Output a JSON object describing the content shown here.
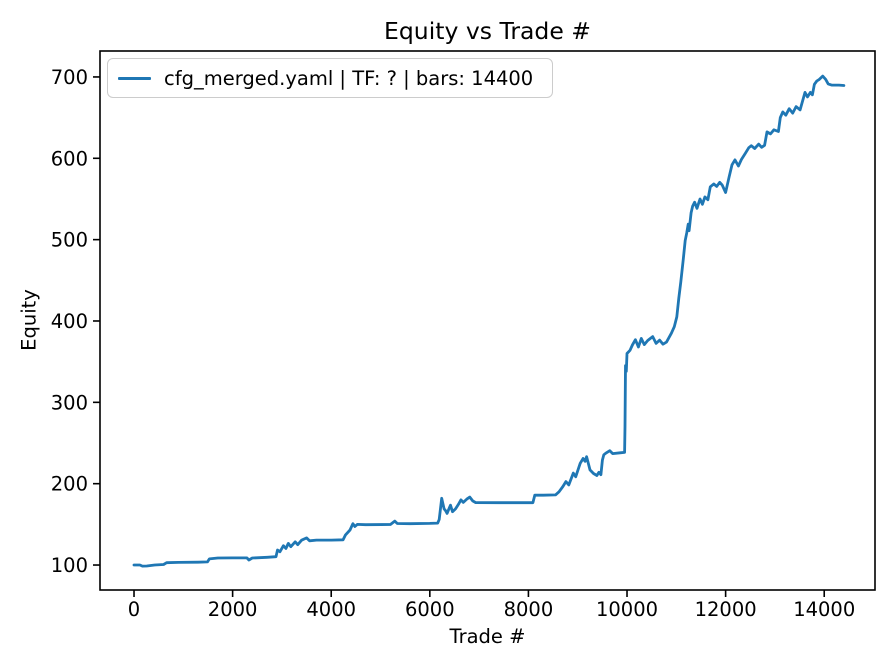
{
  "figure": {
    "background": "#ffffff"
  },
  "chart_data": {
    "type": "line",
    "title": "Equity vs Trade #",
    "xlabel": "Trade #",
    "ylabel": "Equity",
    "grid": false,
    "legend": {
      "position": "upper left",
      "entries": [
        {
          "label": "cfg_merged.yaml | TF: ? | bars: 14400",
          "color": "#1f77b4"
        }
      ]
    },
    "axis_color": "#000000",
    "x_ticks": [
      0,
      2000,
      4000,
      6000,
      8000,
      10000,
      12000,
      14000
    ],
    "y_ticks": [
      100,
      200,
      300,
      400,
      500,
      600,
      700
    ],
    "xlim": [
      -690,
      15030
    ],
    "ylim": [
      69.3,
      731.9
    ],
    "series": [
      {
        "name": "cfg_merged.yaml | TF: ? | bars: 14400",
        "color": "#1f77b4",
        "points": [
          [
            0,
            100
          ],
          [
            120,
            100
          ],
          [
            170,
            98.7
          ],
          [
            260,
            98.8
          ],
          [
            420,
            100
          ],
          [
            600,
            100.6
          ],
          [
            660,
            102.9
          ],
          [
            900,
            103.2
          ],
          [
            1300,
            103.5
          ],
          [
            1490,
            103.8
          ],
          [
            1530,
            107.5
          ],
          [
            1700,
            108.6
          ],
          [
            2000,
            108.8
          ],
          [
            2290,
            108.8
          ],
          [
            2330,
            106.2
          ],
          [
            2400,
            108.6
          ],
          [
            2700,
            109.5
          ],
          [
            2880,
            110.2
          ],
          [
            2910,
            118.5
          ],
          [
            2960,
            116.3
          ],
          [
            3030,
            123.7
          ],
          [
            3080,
            120.3
          ],
          [
            3130,
            126.6
          ],
          [
            3180,
            122.5
          ],
          [
            3270,
            128.6
          ],
          [
            3320,
            125
          ],
          [
            3400,
            130.5
          ],
          [
            3500,
            133.3
          ],
          [
            3560,
            129.8
          ],
          [
            3700,
            130.7
          ],
          [
            4000,
            130.7
          ],
          [
            4240,
            131
          ],
          [
            4290,
            137
          ],
          [
            4380,
            143
          ],
          [
            4440,
            150.8
          ],
          [
            4480,
            147.3
          ],
          [
            4530,
            150
          ],
          [
            4700,
            149.6
          ],
          [
            5200,
            149.8
          ],
          [
            5290,
            154
          ],
          [
            5340,
            151
          ],
          [
            5600,
            150.8
          ],
          [
            6000,
            151.2
          ],
          [
            6160,
            151.5
          ],
          [
            6190,
            156
          ],
          [
            6240,
            182
          ],
          [
            6290,
            169
          ],
          [
            6320,
            166.8
          ],
          [
            6350,
            163.5
          ],
          [
            6390,
            169.3
          ],
          [
            6420,
            173.5
          ],
          [
            6460,
            165.5
          ],
          [
            6520,
            169
          ],
          [
            6580,
            174.5
          ],
          [
            6630,
            180
          ],
          [
            6680,
            177
          ],
          [
            6750,
            181
          ],
          [
            6810,
            183.5
          ],
          [
            6870,
            178.8
          ],
          [
            6930,
            176.7
          ],
          [
            7400,
            176.6
          ],
          [
            8090,
            176.6
          ],
          [
            8130,
            186
          ],
          [
            8300,
            185.8
          ],
          [
            8550,
            186.2
          ],
          [
            8620,
            190
          ],
          [
            8700,
            196.5
          ],
          [
            8760,
            202.5
          ],
          [
            8820,
            198.5
          ],
          [
            8910,
            213
          ],
          [
            8960,
            208.5
          ],
          [
            9050,
            225
          ],
          [
            9110,
            231
          ],
          [
            9150,
            227.5
          ],
          [
            9180,
            233.2
          ],
          [
            9250,
            217
          ],
          [
            9320,
            212.5
          ],
          [
            9390,
            210
          ],
          [
            9430,
            214
          ],
          [
            9470,
            211
          ],
          [
            9500,
            229
          ],
          [
            9530,
            235.5
          ],
          [
            9570,
            237.5
          ],
          [
            9650,
            240.5
          ],
          [
            9710,
            237
          ],
          [
            9860,
            238
          ],
          [
            9950,
            238.5
          ],
          [
            9960,
            270
          ],
          [
            9970,
            345
          ],
          [
            9985,
            338
          ],
          [
            10000,
            360
          ],
          [
            10060,
            364
          ],
          [
            10110,
            370.5
          ],
          [
            10170,
            377
          ],
          [
            10230,
            368
          ],
          [
            10290,
            378.5
          ],
          [
            10350,
            371
          ],
          [
            10420,
            376
          ],
          [
            10520,
            380.8
          ],
          [
            10590,
            372.5
          ],
          [
            10660,
            376.5
          ],
          [
            10730,
            371.5
          ],
          [
            10800,
            374
          ],
          [
            10900,
            385
          ],
          [
            10960,
            393
          ],
          [
            11010,
            405
          ],
          [
            11050,
            428
          ],
          [
            11090,
            448
          ],
          [
            11140,
            475
          ],
          [
            11180,
            499
          ],
          [
            11210,
            508
          ],
          [
            11240,
            519
          ],
          [
            11260,
            511
          ],
          [
            11300,
            533
          ],
          [
            11330,
            541
          ],
          [
            11370,
            546
          ],
          [
            11420,
            538.5
          ],
          [
            11480,
            550
          ],
          [
            11530,
            543.5
          ],
          [
            11580,
            552.5
          ],
          [
            11640,
            549
          ],
          [
            11690,
            565
          ],
          [
            11760,
            568.5
          ],
          [
            11820,
            565.5
          ],
          [
            11880,
            570.5
          ],
          [
            11930,
            567
          ],
          [
            12000,
            558
          ],
          [
            12070,
            577
          ],
          [
            12130,
            592
          ],
          [
            12190,
            598
          ],
          [
            12260,
            590.5
          ],
          [
            12320,
            598.5
          ],
          [
            12400,
            606
          ],
          [
            12470,
            613
          ],
          [
            12520,
            615.5
          ],
          [
            12590,
            612
          ],
          [
            12670,
            617.5
          ],
          [
            12730,
            613.5
          ],
          [
            12790,
            616
          ],
          [
            12840,
            632.5
          ],
          [
            12910,
            630
          ],
          [
            12980,
            635
          ],
          [
            13070,
            633
          ],
          [
            13110,
            650
          ],
          [
            13160,
            657
          ],
          [
            13220,
            653
          ],
          [
            13290,
            661
          ],
          [
            13360,
            655.5
          ],
          [
            13430,
            663.5
          ],
          [
            13510,
            659.5
          ],
          [
            13610,
            681
          ],
          [
            13660,
            675.5
          ],
          [
            13720,
            681
          ],
          [
            13760,
            678
          ],
          [
            13800,
            691
          ],
          [
            13850,
            695
          ],
          [
            13900,
            697
          ],
          [
            13970,
            701
          ],
          [
            14030,
            697
          ],
          [
            14080,
            691.5
          ],
          [
            14150,
            690
          ],
          [
            14300,
            690
          ],
          [
            14400,
            689.5
          ]
        ]
      }
    ]
  }
}
